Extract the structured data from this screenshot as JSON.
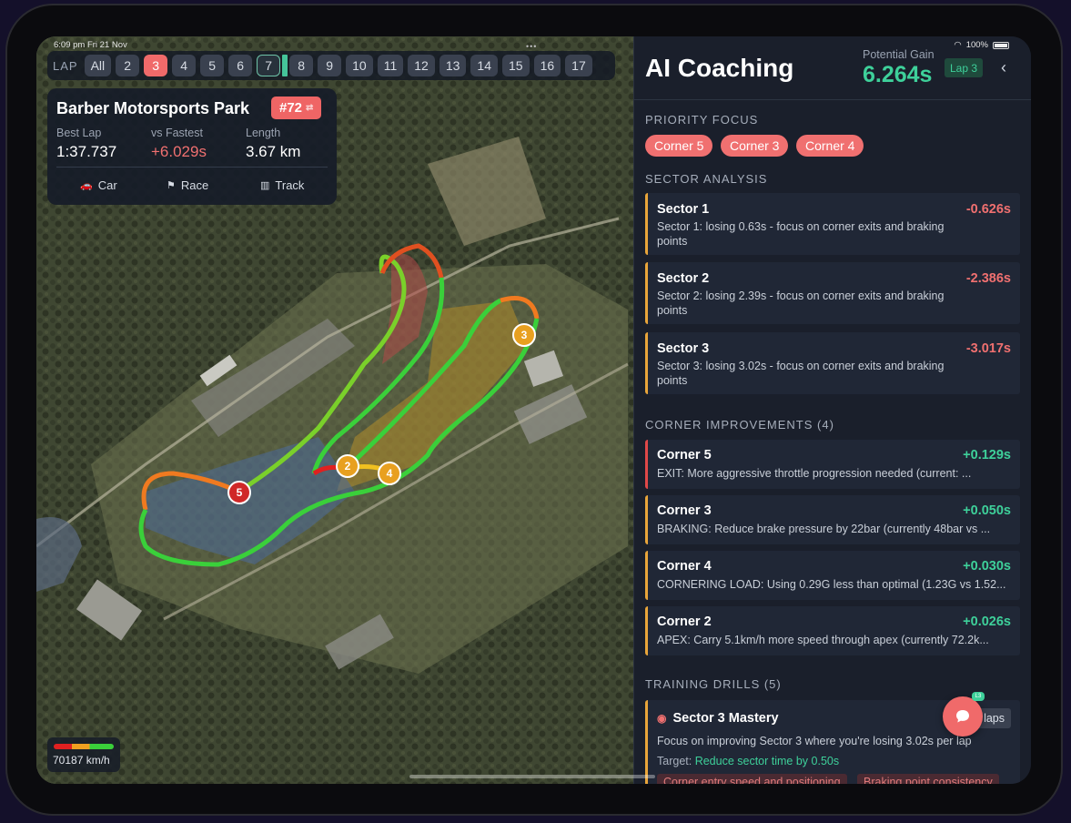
{
  "status": {
    "time_date": "6:09 pm  Fri 21 Nov",
    "dots": "•••",
    "battery": "100%"
  },
  "lap_bar": {
    "label": "LAP",
    "laps": [
      "All",
      "2",
      "3",
      "4",
      "5",
      "6",
      "7",
      "8",
      "9",
      "10",
      "11",
      "12",
      "13",
      "14",
      "15",
      "16",
      "17"
    ],
    "active": "3",
    "outlined": "7"
  },
  "track_card": {
    "name": "Barber Motorsports Park",
    "car_number": "#72",
    "best_lap_label": "Best Lap",
    "best_lap_value": "1:37.737",
    "vs_fastest_label": "vs Fastest",
    "vs_fastest_value": "+6.029s",
    "length_label": "Length",
    "length_value": "3.67 km",
    "tabs": [
      {
        "icon": "car-icon",
        "label": "Car"
      },
      {
        "icon": "flag-icon",
        "label": "Race"
      },
      {
        "icon": "map-icon",
        "label": "Track"
      }
    ]
  },
  "map": {
    "markers": [
      "5",
      "2",
      "4",
      "3"
    ],
    "speed_legend": "70187 km/h"
  },
  "panel": {
    "title": "AI Coaching",
    "potential_gain_label": "Potential Gain",
    "potential_gain_value": "6.264s",
    "lap_tag": "Lap 3",
    "priority_title": "PRIORITY FOCUS",
    "priority_chips": [
      "Corner 5",
      "Corner 3",
      "Corner 4"
    ],
    "sector_title": "SECTOR ANALYSIS",
    "sectors": [
      {
        "name": "Sector 1",
        "value": "-0.626s",
        "desc": "Sector 1: losing 0.63s - focus on corner exits and braking points"
      },
      {
        "name": "Sector 2",
        "value": "-2.386s",
        "desc": "Sector 2: losing 2.39s - focus on corner exits and braking points"
      },
      {
        "name": "Sector 3",
        "value": "-3.017s",
        "desc": "Sector 3: losing 3.02s - focus on corner exits and braking points"
      }
    ],
    "corner_title": "CORNER IMPROVEMENTS (4)",
    "corners": [
      {
        "name": "Corner 5",
        "value": "+0.129s",
        "desc": "EXIT: More aggressive throttle progression needed (current: ..."
      },
      {
        "name": "Corner 3",
        "value": "+0.050s",
        "desc": "BRAKING: Reduce brake pressure by 22bar (currently 48bar vs ..."
      },
      {
        "name": "Corner 4",
        "value": "+0.030s",
        "desc": "CORNERING LOAD: Using 0.29G less than optimal (1.23G vs 1.52..."
      },
      {
        "name": "Corner 2",
        "value": "+0.026s",
        "desc": "APEX: Carry 5.1km/h more speed through apex (currently 72.2k..."
      }
    ],
    "drills_title": "TRAINING DRILLS (5)",
    "drill": {
      "name": "Sector 3 Mastery",
      "laps": "10 laps",
      "desc": "Focus on improving Sector 3 where you're losing 3.02s per lap",
      "target_label": "Target:",
      "target_value": "Reduce sector time by 0.50s",
      "tags": [
        "Corner entry speed and positioning",
        "Braking point consistency"
      ]
    },
    "fab_badge": "L3"
  }
}
